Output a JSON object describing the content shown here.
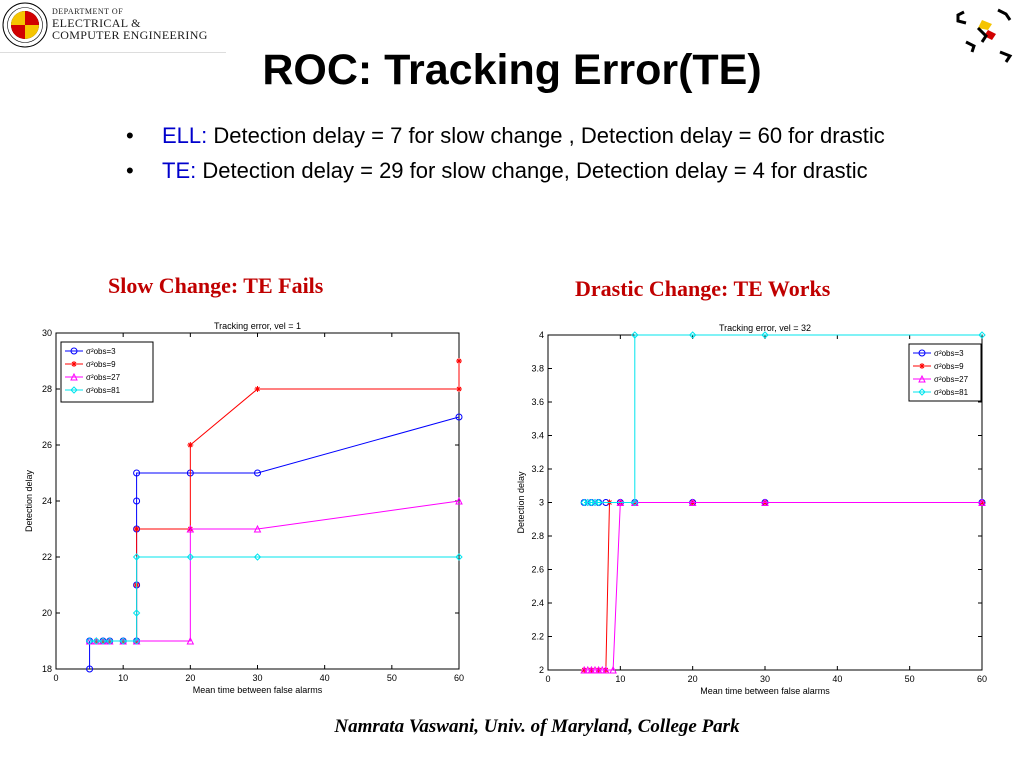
{
  "logo": {
    "line1": "DEPARTMENT OF",
    "line2": "ELECTRICAL &",
    "line3": "COMPUTER ENGINEERING",
    "seal_text": "UNIVERSITY OF MARYLAND"
  },
  "title": "ROC: Tracking Error(TE)",
  "bullets": [
    {
      "symbol": "•",
      "keyword": "ELL:",
      "text": " Detection delay = 7 for slow change , Detection delay = 60 for drastic"
    },
    {
      "symbol": "•",
      "keyword": "TE:",
      "text": "  Detection delay = 29  for slow change,  Detection delay = 4 for drastic"
    }
  ],
  "chart_titles": [
    "Slow Change: TE Fails",
    "Drastic Change: TE Works"
  ],
  "footer": "Namrata Vaswani, Univ. of Maryland, College Park",
  "colors": {
    "keyword": "#0000cc",
    "chart_title": "#c00000"
  },
  "chart_data": [
    {
      "type": "line",
      "title": "Tracking error, vel = 1",
      "xlabel": "Mean time between false alarms",
      "ylabel": "Detection delay",
      "xlim": [
        0,
        60
      ],
      "ylim": [
        18,
        30
      ],
      "xticks": [
        "0",
        "10",
        "20",
        "30",
        "40",
        "50",
        "60"
      ],
      "yticks": [
        "18",
        "20",
        "22",
        "24",
        "26",
        "28",
        "30"
      ],
      "legend_position": "top-left",
      "series": [
        {
          "name": "σ²obs=3",
          "color": "#0000ff",
          "marker": "circle",
          "points": [
            [
              5,
              18
            ],
            [
              5,
              19
            ],
            [
              7,
              19
            ],
            [
              8,
              19
            ],
            [
              10,
              19
            ],
            [
              12,
              19
            ],
            [
              12,
              21
            ],
            [
              12,
              23
            ],
            [
              12,
              24
            ],
            [
              12,
              25
            ],
            [
              20,
              25
            ],
            [
              30,
              25
            ],
            [
              60,
              27
            ]
          ]
        },
        {
          "name": "σ²obs=9",
          "color": "#ff0000",
          "marker": "star",
          "points": [
            [
              6,
              19
            ],
            [
              7,
              19
            ],
            [
              8,
              19
            ],
            [
              10,
              19
            ],
            [
              12,
              19
            ],
            [
              12,
              21
            ],
            [
              12,
              23
            ],
            [
              20,
              23
            ],
            [
              20,
              26
            ],
            [
              30,
              28
            ],
            [
              60,
              28
            ],
            [
              60,
              29
            ]
          ]
        },
        {
          "name": "σ²obs=27",
          "color": "#ff00ff",
          "marker": "triangle",
          "points": [
            [
              5,
              19
            ],
            [
              6,
              19
            ],
            [
              7,
              19
            ],
            [
              8,
              19
            ],
            [
              10,
              19
            ],
            [
              12,
              19
            ],
            [
              20,
              19
            ],
            [
              20,
              23
            ],
            [
              30,
              23
            ],
            [
              60,
              24
            ]
          ]
        },
        {
          "name": "σ²obs=81",
          "color": "#00e5ee",
          "marker": "diamond",
          "points": [
            [
              5,
              19
            ],
            [
              6,
              19
            ],
            [
              7,
              19
            ],
            [
              8,
              19
            ],
            [
              10,
              19
            ],
            [
              12,
              19
            ],
            [
              12,
              20
            ],
            [
              12,
              22
            ],
            [
              20,
              22
            ],
            [
              30,
              22
            ],
            [
              60,
              22
            ]
          ]
        }
      ]
    },
    {
      "type": "line",
      "title": "Tracking error, vel = 32",
      "xlabel": "Mean time between false alarms",
      "ylabel": "Detection delay",
      "xlim": [
        0,
        60
      ],
      "ylim": [
        2,
        4
      ],
      "xticks": [
        "0",
        "10",
        "20",
        "30",
        "40",
        "50",
        "60"
      ],
      "yticks": [
        "2",
        "2.2",
        "2.4",
        "2.6",
        "2.8",
        "3",
        "3.2",
        "3.4",
        "3.6",
        "3.8",
        "4"
      ],
      "legend_position": "top-right",
      "series": [
        {
          "name": "σ²obs=3",
          "color": "#0000ff",
          "marker": "circle",
          "points": [
            [
              5,
              3
            ],
            [
              6,
              3
            ],
            [
              7,
              3
            ],
            [
              8,
              3
            ],
            [
              10,
              3
            ],
            [
              12,
              3
            ],
            [
              20,
              3
            ],
            [
              30,
              3
            ],
            [
              60,
              3
            ]
          ]
        },
        {
          "name": "σ²obs=9",
          "color": "#ff0000",
          "marker": "star",
          "points": [
            [
              5,
              2
            ],
            [
              6,
              2
            ],
            [
              7,
              2
            ],
            [
              8,
              2
            ],
            [
              8.5,
              3
            ],
            [
              10,
              3
            ],
            [
              12,
              3
            ],
            [
              20,
              3
            ],
            [
              30,
              3
            ],
            [
              60,
              3
            ]
          ]
        },
        {
          "name": "σ²obs=27",
          "color": "#ff00ff",
          "marker": "triangle",
          "points": [
            [
              5,
              2
            ],
            [
              5.5,
              2
            ],
            [
              6,
              2
            ],
            [
              6.5,
              2
            ],
            [
              7,
              2
            ],
            [
              7.5,
              2
            ],
            [
              8,
              2
            ],
            [
              9,
              2
            ],
            [
              10,
              3
            ],
            [
              12,
              3
            ],
            [
              20,
              3
            ],
            [
              30,
              3
            ],
            [
              60,
              3
            ]
          ]
        },
        {
          "name": "σ²obs=81",
          "color": "#00e5ee",
          "marker": "diamond",
          "points": [
            [
              5,
              3
            ],
            [
              5.5,
              3
            ],
            [
              6,
              3
            ],
            [
              6.5,
              3
            ],
            [
              7,
              3
            ],
            [
              12,
              3
            ],
            [
              12,
              4
            ],
            [
              20,
              4
            ],
            [
              30,
              4
            ],
            [
              60,
              4
            ]
          ]
        }
      ]
    }
  ]
}
